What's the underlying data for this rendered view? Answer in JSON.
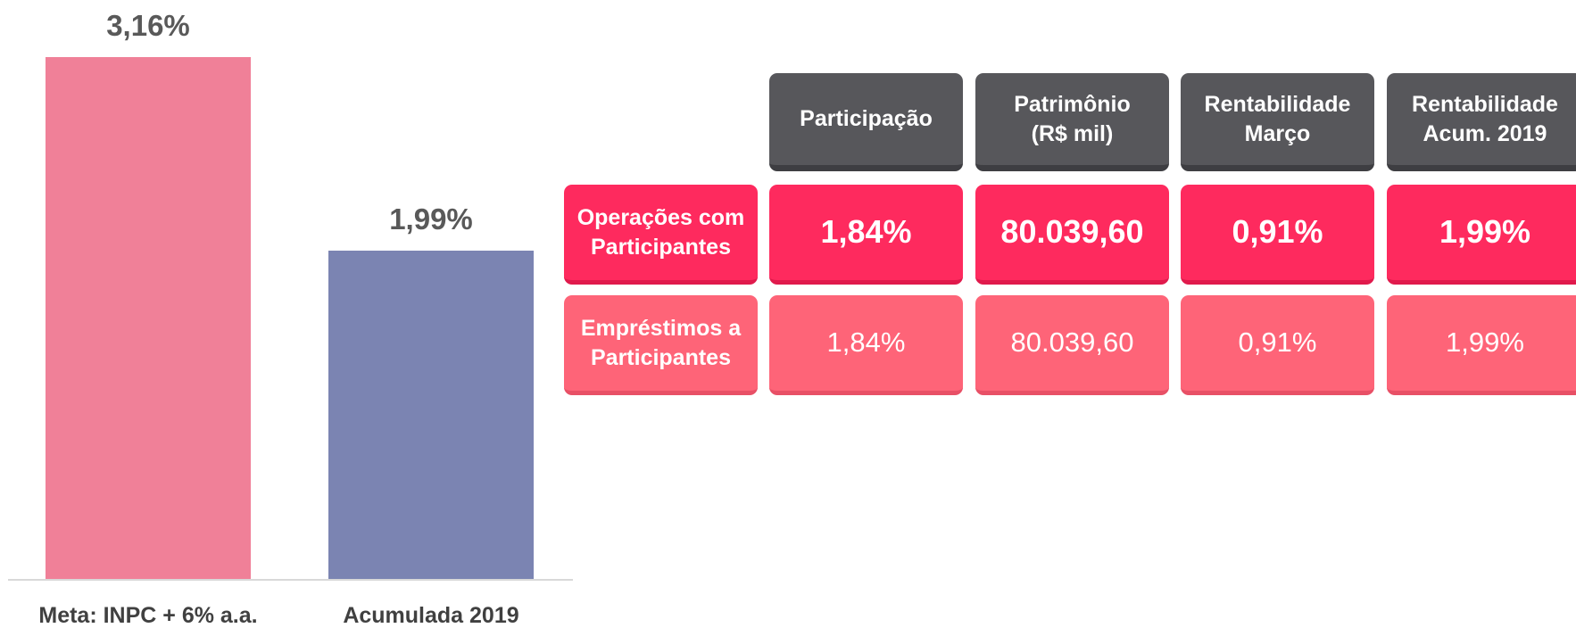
{
  "chart_data": {
    "type": "bar",
    "categories": [
      "Meta: INPC + 6% a.a.",
      "Acumulada 2019"
    ],
    "values": [
      3.16,
      1.99
    ],
    "value_labels": [
      "3,16%",
      "1,99%"
    ],
    "colors": [
      "#f08098",
      "#7b84b2"
    ],
    "ylim": [
      0,
      3.16
    ]
  },
  "table": {
    "header": [
      "Participação",
      "Patrimônio\n(R$ mil)",
      "Rentabilidade\nMarço",
      "Rentabilidade\nAcum. 2019"
    ],
    "rows": [
      {
        "label": "Operações com\nParticipantes",
        "cells": [
          "1,84%",
          "80.039,60",
          "0,91%",
          "1,99%"
        ]
      },
      {
        "label": "Empréstimos a\nParticipantes",
        "cells": [
          "1,84%",
          "80.039,60",
          "0,91%",
          "1,99%"
        ]
      }
    ]
  }
}
